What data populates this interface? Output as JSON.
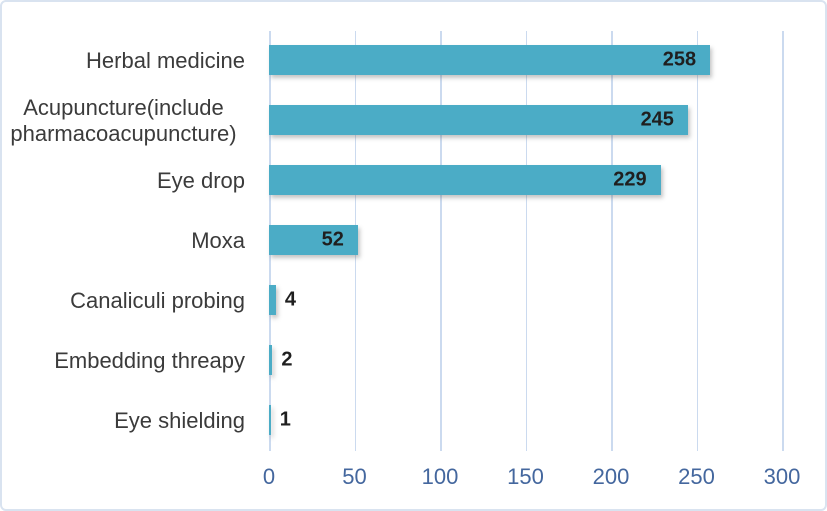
{
  "chart_data": {
    "type": "bar",
    "orientation": "horizontal",
    "title": "",
    "categories": [
      "Herbal medicine",
      "Acupuncture(include pharmacoacupuncture)",
      "Eye drop",
      "Moxa",
      "Canaliculi probing",
      "Embedding threapy",
      "Eye shielding"
    ],
    "values": [
      258,
      245,
      229,
      52,
      4,
      2,
      1
    ],
    "xlabel": "",
    "ylabel": "",
    "xlim": [
      0,
      300
    ],
    "x_ticks": [
      0,
      50,
      100,
      150,
      200,
      250,
      300
    ],
    "grid": true,
    "legend": false,
    "value_label_placement": "inside bar end for large bars, outside for small bars",
    "colors": {
      "bar": "#4BACC6",
      "gridline": "#CBDAEF",
      "tick_label": "#44679E",
      "value_label": "#1F1F1F",
      "category_label": "#3B3B3B",
      "frame_border": "#D9E3F0",
      "background": "#FFFFFF"
    }
  }
}
